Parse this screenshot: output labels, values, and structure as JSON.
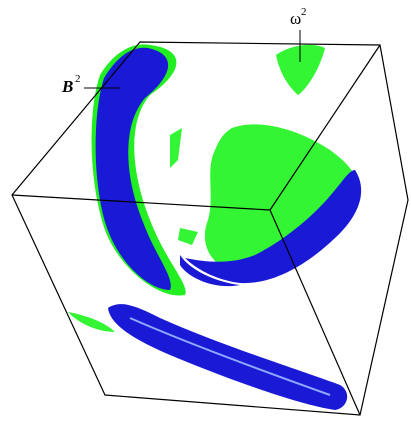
{
  "labels": [
    {
      "base": "B",
      "sup": "2"
    },
    {
      "base": "ω",
      "sup": "2"
    }
  ]
}
